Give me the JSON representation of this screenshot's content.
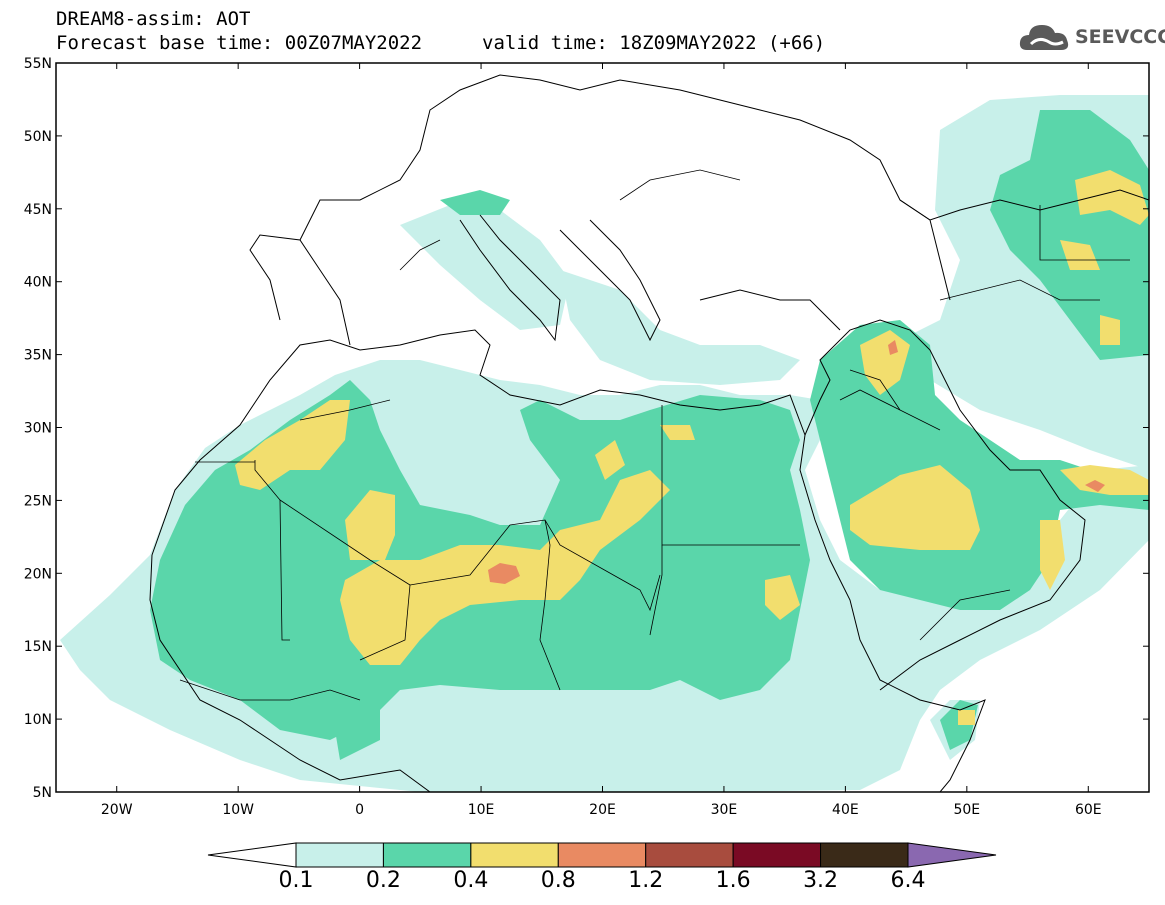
{
  "header": {
    "line1": "DREAM8-assim: AOT",
    "line2": "Forecast base time: 00Z07MAY2022",
    "valid": "valid time: 18Z09MAY2022 (+66)"
  },
  "logo": {
    "text": "SEEVCCC",
    "icon": "cloud-icon"
  },
  "map": {
    "lon_range": [
      -25,
      65
    ],
    "lat_range": [
      5,
      55
    ],
    "lat_labels": [
      "55N",
      "50N",
      "45N",
      "40N",
      "35N",
      "30N",
      "25N",
      "20N",
      "15N",
      "10N",
      "5N"
    ],
    "lon_labels": [
      "20W",
      "10W",
      "0",
      "10E",
      "20E",
      "30E",
      "40E",
      "50E",
      "60E"
    ]
  },
  "colorbar": {
    "labels": [
      "0.1",
      "0.2",
      "0.4",
      "0.8",
      "1.2",
      "1.6",
      "3.2",
      "6.4"
    ],
    "colors": [
      "#c8f0ea",
      "#5ad6aa",
      "#f2de6e",
      "#e98a62",
      "#a84c3e",
      "#7a0a24",
      "#3a2a18",
      "#8a68b0"
    ],
    "under_color": "#ffffff"
  }
}
